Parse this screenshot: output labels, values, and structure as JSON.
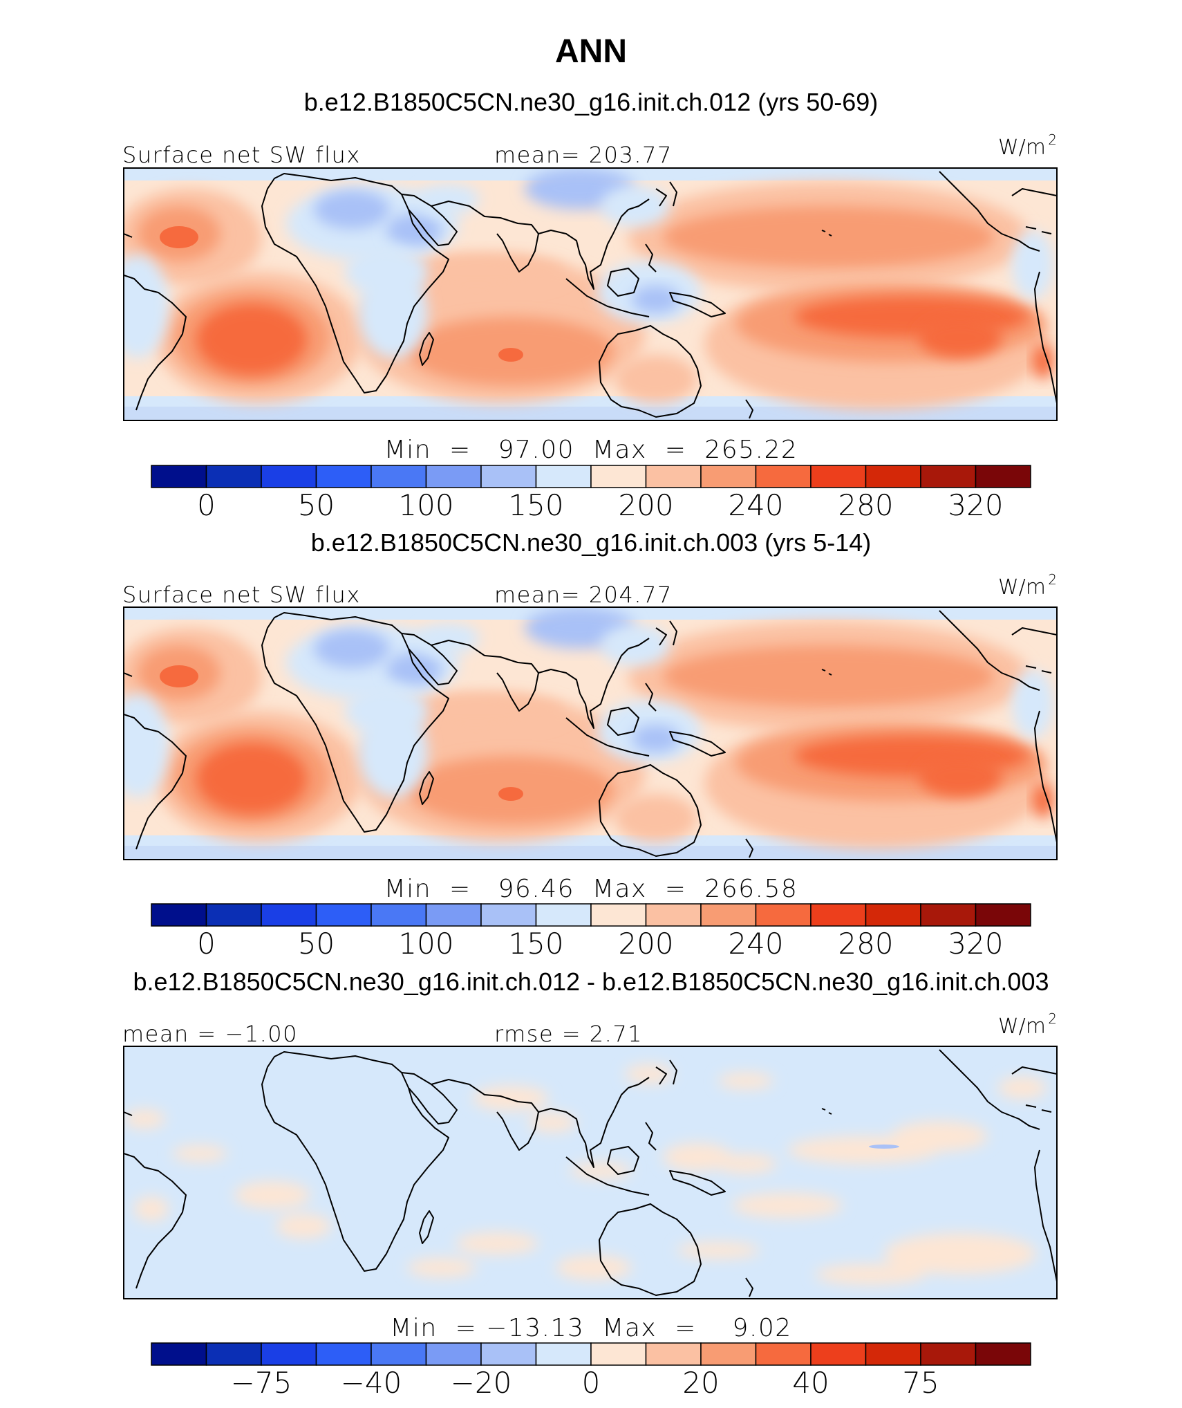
{
  "page": {
    "title": "ANN"
  },
  "panels": [
    {
      "case_title": "b.e12.B1850C5CN.ne30_g16.init.ch.012 (yrs 50-69)",
      "left_label": "Surface net SW flux",
      "center_label": "mean= 203.77",
      "units": "W/m",
      "units_sup": "2",
      "minmax_label": "Min  =   97.00  Max  =  265.22"
    },
    {
      "case_title": "b.e12.B1850C5CN.ne30_g16.init.ch.003 (yrs 5-14)",
      "left_label": "Surface net SW flux",
      "center_label": "mean= 204.77",
      "units": "W/m",
      "units_sup": "2",
      "minmax_label": "Min  =   96.46  Max  =  266.58"
    },
    {
      "case_title": "b.e12.B1850C5CN.ne30_g16.init.ch.012 - b.e12.B1850C5CN.ne30_g16.init.ch.003",
      "left_label": "mean =   −1.00",
      "center_label": "rmse =    2.71",
      "units": "W/m",
      "units_sup": "2",
      "minmax_label": "Min  = −13.13  Max  =    9.02"
    }
  ],
  "chart_data": [
    {
      "type": "heatmap",
      "title": "b.e12.B1850C5CN.ne30_g16.init.ch.012 (yrs 50-69)",
      "variable": "Surface net SW flux",
      "units": "W/m2",
      "mean": 203.77,
      "min": 97.0,
      "max": 265.22,
      "colorbar_ticks": [
        "0",
        "50",
        "100",
        "150",
        "200",
        "240",
        "280",
        "320"
      ],
      "colorbar_tick_bins": [
        1,
        3,
        5,
        7,
        9,
        11,
        13,
        15
      ]
    },
    {
      "type": "heatmap",
      "title": "b.e12.B1850C5CN.ne30_g16.init.ch.003 (yrs 5-14)",
      "variable": "Surface net SW flux",
      "units": "W/m2",
      "mean": 204.77,
      "min": 96.46,
      "max": 266.58,
      "colorbar_ticks": [
        "0",
        "50",
        "100",
        "150",
        "200",
        "240",
        "280",
        "320"
      ],
      "colorbar_tick_bins": [
        1,
        3,
        5,
        7,
        9,
        11,
        13,
        15
      ]
    },
    {
      "type": "heatmap",
      "title": "b.e12.B1850C5CN.ne30_g16.init.ch.012 - b.e12.B1850C5CN.ne30_g16.init.ch.003",
      "units": "W/m2",
      "mean": -1.0,
      "rmse": 2.71,
      "min": -13.13,
      "max": 9.02,
      "colorbar_ticks": [
        "−75",
        "−40",
        "−20",
        "0",
        "20",
        "40",
        "75"
      ],
      "colorbar_tick_bins": [
        2,
        4,
        6,
        8,
        10,
        12,
        14
      ]
    }
  ],
  "colorbar_colors": [
    "#000f8c",
    "#0b2fb5",
    "#1a3fe6",
    "#2d5ef7",
    "#4a78f5",
    "#7a9bf5",
    "#a9c1f7",
    "#d6e8fb",
    "#fde6d4",
    "#fbc1a3",
    "#f89c73",
    "#f66a3e",
    "#ed3f1c",
    "#d42808",
    "#a8180a",
    "#7a0608"
  ]
}
